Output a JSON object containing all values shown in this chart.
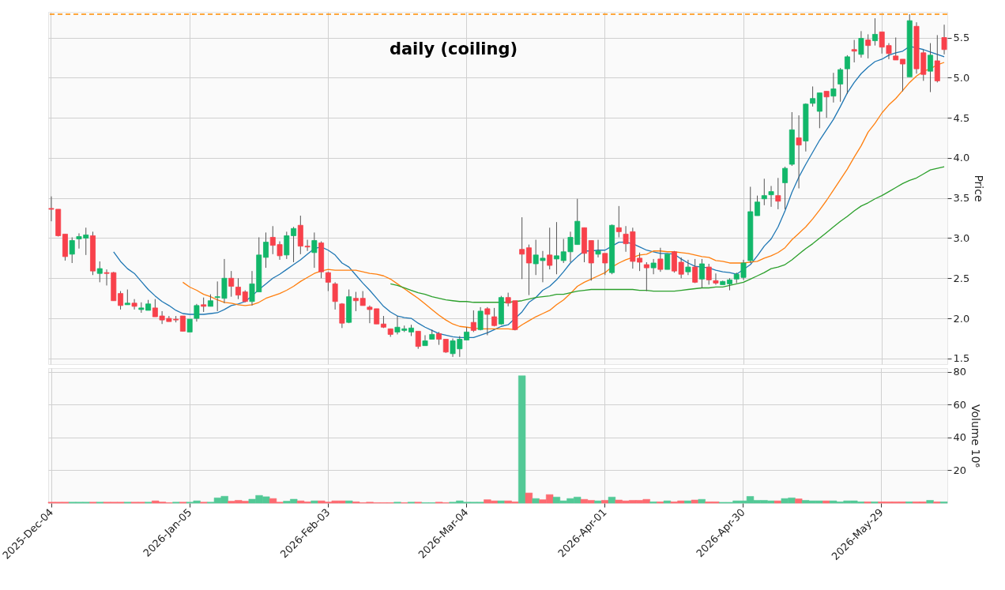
{
  "chart_data": [
    {
      "type": "candlestick",
      "title": "daily  (coiling)",
      "ylabel": "Price",
      "categories": [
        null,
        null,
        null,
        null,
        null,
        null,
        null,
        null,
        null,
        null,
        null,
        null,
        null,
        null,
        null,
        null,
        null,
        null,
        null,
        null,
        null,
        null,
        null,
        null,
        null,
        null,
        null,
        null,
        null,
        null,
        null,
        null,
        null,
        null,
        null,
        null,
        null,
        null,
        null,
        null,
        null,
        null,
        null,
        null,
        null,
        null,
        null,
        null,
        null,
        null,
        null,
        null,
        null,
        null,
        null,
        null,
        null,
        null,
        null,
        null,
        null,
        null,
        null,
        null,
        null,
        null,
        null,
        null,
        null,
        null,
        null,
        null,
        null,
        null,
        null,
        null,
        null,
        null,
        null,
        null,
        null,
        null,
        null,
        null,
        null,
        null,
        null,
        null,
        null,
        null,
        null,
        null,
        null,
        null,
        null,
        null,
        null,
        null,
        null,
        null,
        null,
        null,
        null,
        null,
        null,
        null,
        null,
        null,
        null,
        null,
        null,
        null,
        null,
        null,
        null,
        null,
        null,
        null,
        null,
        null,
        null,
        null,
        null,
        null,
        null,
        null,
        null,
        null,
        null,
        null
      ],
      "ohlc": [
        [
          3.37,
          3.52,
          3.21,
          3.36
        ],
        [
          3.36,
          3.36,
          3.02,
          3.03
        ],
        [
          3.05,
          3.05,
          2.72,
          2.77
        ],
        [
          2.8,
          3.01,
          2.69,
          2.97
        ],
        [
          2.99,
          3.06,
          2.87,
          3.02
        ],
        [
          3.0,
          3.13,
          2.79,
          3.04
        ],
        [
          3.03,
          3.08,
          2.54,
          2.59
        ],
        [
          2.56,
          2.71,
          2.45,
          2.62
        ],
        [
          2.57,
          2.61,
          2.41,
          2.56
        ],
        [
          2.57,
          2.58,
          2.22,
          2.22
        ],
        [
          2.31,
          2.34,
          2.11,
          2.16
        ],
        [
          2.17,
          2.36,
          2.17,
          2.19
        ],
        [
          2.19,
          2.24,
          2.11,
          2.15
        ],
        [
          2.11,
          2.2,
          2.07,
          2.13
        ],
        [
          2.1,
          2.23,
          2.1,
          2.18
        ],
        [
          2.13,
          2.24,
          2.02,
          2.02
        ],
        [
          2.03,
          2.09,
          1.93,
          1.98
        ],
        [
          2.0,
          2.03,
          1.96,
          1.96
        ],
        [
          1.99,
          2.03,
          1.95,
          1.98
        ],
        [
          2.03,
          2.03,
          1.84,
          1.84
        ],
        [
          1.83,
          1.99,
          1.83,
          1.99
        ],
        [
          2.0,
          2.18,
          1.96,
          2.16
        ],
        [
          2.17,
          2.26,
          2.08,
          2.15
        ],
        [
          2.15,
          2.3,
          2.15,
          2.22
        ],
        [
          2.26,
          2.46,
          2.09,
          2.27
        ],
        [
          2.25,
          2.74,
          2.19,
          2.5
        ],
        [
          2.5,
          2.59,
          2.27,
          2.4
        ],
        [
          2.39,
          2.5,
          2.24,
          2.29
        ],
        [
          2.33,
          2.35,
          2.2,
          2.21
        ],
        [
          2.21,
          2.59,
          2.16,
          2.43
        ],
        [
          2.33,
          3.01,
          2.33,
          2.79
        ],
        [
          2.76,
          3.07,
          2.63,
          2.95
        ],
        [
          3.01,
          3.15,
          2.8,
          2.91
        ],
        [
          2.92,
          2.96,
          2.73,
          2.78
        ],
        [
          2.79,
          3.08,
          2.74,
          3.03
        ],
        [
          3.03,
          3.14,
          2.7,
          3.12
        ],
        [
          3.16,
          3.28,
          2.8,
          2.9
        ],
        [
          2.9,
          2.98,
          2.84,
          2.89
        ],
        [
          2.82,
          3.07,
          2.63,
          2.97
        ],
        [
          2.94,
          2.96,
          2.5,
          2.58
        ],
        [
          2.57,
          2.58,
          2.34,
          2.45
        ],
        [
          2.43,
          2.45,
          2.11,
          2.21
        ],
        [
          2.18,
          2.19,
          1.88,
          1.94
        ],
        [
          1.95,
          2.36,
          1.94,
          2.27
        ],
        [
          2.25,
          2.33,
          2.09,
          2.22
        ],
        [
          2.25,
          2.34,
          2.16,
          2.16
        ],
        [
          2.14,
          2.16,
          1.94,
          2.11
        ],
        [
          2.12,
          2.12,
          1.93,
          1.93
        ],
        [
          1.93,
          2.03,
          1.88,
          1.89
        ],
        [
          1.87,
          1.87,
          1.77,
          1.8
        ],
        [
          1.83,
          2.03,
          1.8,
          1.89
        ],
        [
          1.85,
          1.91,
          1.83,
          1.87
        ],
        [
          1.83,
          1.92,
          1.78,
          1.88
        ],
        [
          1.84,
          1.84,
          1.62,
          1.65
        ],
        [
          1.66,
          1.79,
          1.66,
          1.72
        ],
        [
          1.74,
          1.86,
          1.74,
          1.8
        ],
        [
          1.81,
          1.83,
          1.67,
          1.74
        ],
        [
          1.74,
          1.74,
          1.57,
          1.58
        ],
        [
          1.56,
          1.75,
          1.52,
          1.72
        ],
        [
          1.62,
          1.78,
          1.52,
          1.74
        ],
        [
          1.73,
          1.89,
          1.73,
          1.83
        ],
        [
          1.95,
          2.1,
          1.83,
          1.85
        ],
        [
          1.86,
          2.14,
          1.85,
          2.09
        ],
        [
          2.12,
          2.14,
          1.79,
          2.05
        ],
        [
          2.02,
          2.13,
          1.9,
          1.91
        ],
        [
          1.93,
          2.28,
          1.92,
          2.26
        ],
        [
          2.26,
          2.32,
          2.15,
          2.19
        ],
        [
          2.22,
          2.22,
          1.85,
          1.86
        ],
        [
          2.86,
          3.26,
          2.49,
          2.8
        ],
        [
          2.88,
          2.92,
          2.29,
          2.69
        ],
        [
          2.68,
          2.98,
          2.54,
          2.79
        ],
        [
          2.72,
          2.84,
          2.45,
          2.75
        ],
        [
          2.79,
          3.13,
          2.61,
          2.66
        ],
        [
          2.74,
          3.2,
          2.55,
          2.78
        ],
        [
          2.72,
          2.99,
          2.69,
          2.83
        ],
        [
          2.83,
          3.08,
          2.7,
          3.01
        ],
        [
          2.92,
          3.49,
          2.92,
          3.21
        ],
        [
          3.13,
          3.13,
          2.7,
          2.81
        ],
        [
          2.97,
          2.97,
          2.47,
          2.69
        ],
        [
          2.8,
          2.98,
          2.76,
          2.84
        ],
        [
          2.81,
          2.81,
          2.54,
          2.69
        ],
        [
          2.57,
          3.17,
          2.55,
          3.16
        ],
        [
          3.13,
          3.4,
          3.01,
          3.08
        ],
        [
          3.05,
          3.15,
          2.83,
          2.93
        ],
        [
          3.08,
          3.13,
          2.62,
          2.71
        ],
        [
          2.75,
          2.82,
          2.59,
          2.7
        ],
        [
          2.67,
          2.7,
          2.34,
          2.63
        ],
        [
          2.63,
          2.74,
          2.55,
          2.69
        ],
        [
          2.74,
          2.88,
          2.58,
          2.61
        ],
        [
          2.61,
          2.8,
          2.61,
          2.8
        ],
        [
          2.83,
          2.84,
          2.57,
          2.59
        ],
        [
          2.7,
          2.76,
          2.5,
          2.55
        ],
        [
          2.58,
          2.73,
          2.54,
          2.64
        ],
        [
          2.64,
          2.74,
          2.44,
          2.45
        ],
        [
          2.49,
          2.74,
          2.38,
          2.68
        ],
        [
          2.64,
          2.68,
          2.42,
          2.48
        ],
        [
          2.47,
          2.56,
          2.42,
          2.44
        ],
        [
          2.42,
          2.47,
          2.42,
          2.46
        ],
        [
          2.43,
          2.5,
          2.35,
          2.48
        ],
        [
          2.49,
          2.57,
          2.44,
          2.55
        ],
        [
          2.51,
          2.73,
          2.48,
          2.69
        ],
        [
          2.72,
          3.64,
          2.69,
          3.33
        ],
        [
          3.28,
          3.53,
          3.28,
          3.45
        ],
        [
          3.49,
          3.74,
          3.41,
          3.53
        ],
        [
          3.54,
          3.65,
          3.39,
          3.58
        ],
        [
          3.53,
          3.75,
          3.36,
          3.46
        ],
        [
          3.69,
          3.89,
          3.36,
          3.87
        ],
        [
          3.92,
          4.57,
          3.9,
          4.35
        ],
        [
          4.25,
          4.53,
          3.62,
          4.16
        ],
        [
          4.21,
          4.68,
          4.08,
          4.67
        ],
        [
          4.68,
          4.89,
          4.64,
          4.74
        ],
        [
          4.58,
          4.81,
          4.37,
          4.81
        ],
        [
          4.83,
          4.83,
          4.5,
          4.76
        ],
        [
          4.77,
          5.06,
          4.69,
          4.86
        ],
        [
          4.92,
          5.12,
          4.7,
          5.1
        ],
        [
          5.11,
          5.28,
          4.8,
          5.26
        ],
        [
          5.35,
          5.47,
          5.19,
          5.33
        ],
        [
          5.29,
          5.58,
          5.25,
          5.49
        ],
        [
          5.47,
          5.54,
          5.24,
          5.4
        ],
        [
          5.46,
          5.74,
          5.4,
          5.54
        ],
        [
          5.57,
          5.57,
          5.3,
          5.38
        ],
        [
          5.4,
          5.43,
          5.23,
          5.3
        ],
        [
          5.27,
          5.5,
          5.22,
          5.22
        ],
        [
          5.23,
          5.23,
          4.83,
          5.17
        ],
        [
          5.01,
          5.79,
          5.01,
          5.71
        ],
        [
          5.64,
          5.69,
          5.05,
          5.11
        ],
        [
          5.31,
          5.35,
          4.96,
          5.04
        ],
        [
          5.08,
          5.43,
          4.82,
          5.28
        ],
        [
          5.21,
          5.53,
          4.94,
          4.96
        ],
        [
          5.5,
          5.66,
          5.29,
          5.35
        ]
      ],
      "colors": [
        "#f8414b",
        "#f8414b",
        "#f8414b",
        "#12b76a",
        "#12b76a",
        "#12b76a",
        "#f8414b",
        "#12b76a",
        "#f8414b",
        "#f8414b",
        "#f8414b",
        "#12b76a",
        "#f8414b",
        "#12b76a",
        "#12b76a",
        "#f8414b",
        "#f8414b",
        "#f8414b",
        "#f8414b",
        "#f8414b",
        "#12b76a",
        "#12b76a",
        "#f8414b",
        "#12b76a",
        "#12b76a",
        "#12b76a",
        "#f8414b",
        "#f8414b",
        "#f8414b",
        "#12b76a",
        "#12b76a",
        "#12b76a",
        "#f8414b",
        "#f8414b",
        "#12b76a",
        "#12b76a",
        "#f8414b",
        "#f8414b",
        "#12b76a",
        "#f8414b",
        "#f8414b",
        "#f8414b",
        "#f8414b",
        "#12b76a",
        "#f8414b",
        "#f8414b",
        "#f8414b",
        "#f8414b",
        "#f8414b",
        "#f8414b",
        "#12b76a",
        "#12b76a",
        "#12b76a",
        "#f8414b",
        "#12b76a",
        "#12b76a",
        "#f8414b",
        "#f8414b",
        "#12b76a",
        "#12b76a",
        "#12b76a",
        "#f8414b",
        "#12b76a",
        "#f8414b",
        "#f8414b",
        "#12b76a",
        "#f8414b",
        "#f8414b",
        "#f8414b",
        "#f8414b",
        "#12b76a",
        "#12b76a",
        "#f8414b",
        "#12b76a",
        "#12b76a",
        "#12b76a",
        "#12b76a",
        "#f8414b",
        "#f8414b",
        "#12b76a",
        "#f8414b",
        "#12b76a",
        "#f8414b",
        "#f8414b",
        "#f8414b",
        "#f8414b",
        "#f8414b",
        "#12b76a",
        "#f8414b",
        "#12b76a",
        "#f8414b",
        "#f8414b",
        "#12b76a",
        "#f8414b",
        "#12b76a",
        "#f8414b",
        "#f8414b",
        "#12b76a",
        "#12b76a",
        "#12b76a",
        "#12b76a",
        "#12b76a",
        "#12b76a",
        "#12b76a",
        "#12b76a",
        "#f8414b",
        "#12b76a",
        "#12b76a",
        "#f8414b",
        "#12b76a",
        "#12b76a",
        "#12b76a",
        "#f8414b",
        "#12b76a",
        "#12b76a",
        "#12b76a",
        "#f8414b",
        "#12b76a",
        "#f8414b",
        "#12b76a",
        "#f8414b",
        "#f8414b",
        "#f8414b",
        "#f8414b",
        "#12b76a",
        "#f8414b",
        "#f8414b",
        "#12b76a",
        "#f8414b",
        "#f8414b"
      ],
      "series": [
        {
          "type": "line",
          "color": "#1f77b4",
          "values": [
            null,
            null,
            null,
            null,
            null,
            null,
            null,
            null,
            null,
            2.83,
            2.71,
            2.62,
            2.56,
            2.46,
            2.36,
            2.28,
            2.21,
            2.16,
            2.1,
            2.06,
            2.05,
            2.05,
            2.05,
            2.06,
            2.07,
            2.11,
            2.16,
            2.18,
            2.21,
            2.28,
            2.36,
            2.43,
            2.5,
            2.55,
            2.61,
            2.67,
            2.73,
            2.8,
            2.87,
            2.89,
            2.85,
            2.79,
            2.69,
            2.64,
            2.54,
            2.44,
            2.35,
            2.25,
            2.15,
            2.08,
            2.03,
            2.01,
            2.0,
            1.94,
            1.89,
            1.85,
            1.81,
            1.79,
            1.77,
            1.76,
            1.76,
            1.76,
            1.79,
            1.82,
            1.86,
            1.9,
            1.92,
            null,
            2.08,
            2.2,
            2.26,
            2.35,
            2.4,
            2.48,
            2.58,
            2.69,
            2.77,
            2.84,
            2.84,
            2.85,
            2.85,
            2.9,
            2.95,
            2.95,
            2.93,
            2.89,
            2.85,
            2.83,
            2.81,
            2.81,
            2.8,
            2.74,
            2.69,
            2.65,
            2.64,
            2.63,
            2.6,
            2.58,
            2.57,
            2.55,
            null,
            2.67,
            2.78,
            2.9,
            2.99,
            3.14,
            3.34,
            3.57,
            3.76,
            3.92,
            4.07,
            4.22,
            4.35,
            4.48,
            4.64,
            4.81,
            4.94,
            5.05,
            5.13,
            5.2,
            5.23,
            5.28,
            5.31,
            5.33,
            5.39,
            5.37,
            5.35,
            5.32,
            5.29,
            5.26
          ]
        },
        {
          "type": "line",
          "color": "#ff7f0e",
          "values": [
            null,
            null,
            null,
            null,
            null,
            null,
            null,
            null,
            null,
            null,
            null,
            null,
            null,
            null,
            null,
            null,
            null,
            null,
            null,
            2.45,
            2.39,
            2.35,
            2.3,
            2.27,
            2.23,
            2.2,
            2.19,
            2.17,
            2.16,
            2.17,
            2.2,
            2.25,
            2.28,
            2.31,
            2.35,
            2.4,
            2.46,
            2.51,
            2.56,
            2.59,
            2.61,
            2.6,
            2.6,
            2.6,
            2.6,
            2.58,
            2.56,
            2.55,
            2.53,
            2.49,
            2.43,
            2.37,
            2.31,
            2.25,
            2.18,
            2.11,
            2.04,
            1.98,
            1.93,
            1.9,
            1.89,
            1.88,
            1.87,
            1.87,
            1.87,
            1.87,
            1.87,
            1.86,
            1.92,
            1.97,
            2.02,
            2.06,
            2.1,
            2.17,
            2.23,
            2.31,
            2.4,
            2.45,
            2.49,
            2.53,
            2.57,
            2.64,
            2.69,
            2.73,
            2.76,
            2.79,
            2.8,
            2.84,
            2.84,
            2.83,
            2.83,
            2.82,
            2.81,
            2.79,
            2.77,
            2.76,
            2.72,
            2.71,
            2.69,
            2.69,
            2.69,
            2.7,
            2.71,
            2.75,
            2.78,
            2.82,
            2.88,
            2.98,
            3.06,
            3.14,
            3.24,
            3.35,
            3.47,
            3.6,
            3.73,
            3.86,
            4.01,
            4.15,
            4.32,
            4.43,
            4.56,
            4.66,
            4.74,
            4.84,
            4.94,
            5.02,
            5.08,
            5.11,
            5.16,
            5.19
          ]
        },
        {
          "type": "line",
          "color": "#2ca02c",
          "values": [
            null,
            null,
            null,
            null,
            null,
            null,
            null,
            null,
            null,
            null,
            null,
            null,
            null,
            null,
            null,
            null,
            null,
            null,
            null,
            null,
            null,
            null,
            null,
            null,
            null,
            null,
            null,
            null,
            null,
            null,
            null,
            null,
            null,
            null,
            null,
            null,
            null,
            null,
            null,
            null,
            null,
            null,
            null,
            null,
            null,
            null,
            null,
            null,
            null,
            2.43,
            2.41,
            2.38,
            2.35,
            2.32,
            2.3,
            2.27,
            2.25,
            2.23,
            2.22,
            2.21,
            2.21,
            2.2,
            2.2,
            2.2,
            2.2,
            2.2,
            2.2,
            2.21,
            2.22,
            2.24,
            2.26,
            2.27,
            2.28,
            2.3,
            2.3,
            2.32,
            2.34,
            2.35,
            2.36,
            2.36,
            2.36,
            2.36,
            2.36,
            2.36,
            2.36,
            2.35,
            2.35,
            2.34,
            2.34,
            2.34,
            2.34,
            2.35,
            2.36,
            2.37,
            2.38,
            2.38,
            2.39,
            2.39,
            2.41,
            2.43,
            2.45,
            2.49,
            2.53,
            2.57,
            2.62,
            2.64,
            2.67,
            2.73,
            2.8,
            2.87,
            2.93,
            3.0,
            3.07,
            3.14,
            3.21,
            3.27,
            3.34,
            3.4,
            3.44,
            3.49,
            3.53,
            3.58,
            3.63,
            3.68,
            3.72,
            3.75,
            3.8,
            3.85,
            3.87,
            3.89
          ]
        }
      ],
      "ylim": [
        1.43,
        5.82
      ],
      "yticks": [
        1.5,
        {
          "value": 2,
          "label": "2.0"
        },
        2.5,
        {
          "value": 3,
          "label": "3.0"
        },
        3.5,
        {
          "value": 4,
          "label": "4.0"
        },
        4.5,
        {
          "value": 5,
          "label": "5.0"
        },
        5.5
      ],
      "ref_lines": [
        {
          "axis": "y",
          "value": 5.79,
          "color": "#ff8c00",
          "line_style": "dashed"
        }
      ],
      "grid": true,
      "tick_labels": "y"
    },
    {
      "type": "bar",
      "ylabel": "Volume  10⁶",
      "categories": [
        "2025-Dec-04",
        null,
        null,
        null,
        null,
        null,
        null,
        null,
        null,
        null,
        null,
        null,
        null,
        null,
        null,
        null,
        null,
        null,
        null,
        null,
        "2026-Jan-05",
        null,
        null,
        null,
        null,
        null,
        null,
        null,
        null,
        null,
        null,
        null,
        null,
        null,
        null,
        null,
        null,
        null,
        null,
        null,
        "2026-Feb-03",
        null,
        null,
        null,
        null,
        null,
        null,
        null,
        null,
        null,
        null,
        null,
        null,
        null,
        null,
        null,
        null,
        null,
        null,
        null,
        "2026-Mar-04",
        null,
        null,
        null,
        null,
        null,
        null,
        null,
        null,
        null,
        null,
        null,
        null,
        null,
        null,
        null,
        null,
        null,
        null,
        null,
        "2026-Apr-01",
        null,
        null,
        null,
        null,
        null,
        null,
        null,
        null,
        null,
        null,
        null,
        null,
        null,
        null,
        null,
        null,
        null,
        null,
        null,
        "2026-Apr-30",
        null,
        null,
        null,
        null,
        null,
        null,
        null,
        null,
        null,
        null,
        null,
        null,
        null,
        null,
        null,
        null,
        null,
        null,
        null,
        "2026-May-29",
        null,
        null,
        null,
        null,
        null,
        null,
        null,
        null,
        null
      ],
      "values": [
        0.6,
        0.6,
        0.6,
        0.6,
        0.6,
        0.6,
        0.6,
        0.6,
        0.6,
        0.6,
        0.6,
        0.6,
        0.6,
        0.6,
        0.6,
        1.4,
        0.7,
        0.3,
        0.6,
        0.6,
        0.6,
        1.4,
        0.6,
        0.6,
        3.2,
        4.2,
        1.2,
        1.7,
        1.2,
        2.4,
        4.7,
        3.9,
        2.8,
        0.6,
        1.2,
        2.4,
        1.4,
        0.8,
        1.4,
        1.4,
        0.7,
        1.4,
        1.4,
        1.4,
        0.8,
        0.3,
        0.6,
        0.3,
        0.3,
        0.3,
        0.6,
        0.3,
        0.6,
        0.6,
        0.3,
        0.3,
        0.6,
        0.3,
        0.6,
        1.4,
        0.6,
        0.6,
        0.6,
        2.1,
        1.4,
        1.4,
        1.4,
        0.8,
        77.7,
        6.2,
        2.8,
        2.1,
        5.2,
        3.7,
        1.4,
        2.8,
        3.7,
        2.3,
        1.7,
        1.4,
        1.7,
        3.7,
        1.9,
        1.4,
        1.7,
        1.7,
        2.3,
        0.8,
        0.8,
        1.4,
        0.8,
        1.4,
        1.4,
        1.9,
        2.3,
        0.8,
        0.8,
        0.5,
        0.5,
        1.4,
        1.4,
        4.1,
        1.7,
        1.7,
        1.4,
        1.4,
        2.8,
        3.2,
        2.6,
        1.7,
        1.4,
        1.4,
        1.4,
        1.4,
        0.8,
        1.4,
        1.4,
        0.8,
        0.8,
        0.8,
        0.8,
        0.8,
        0.8,
        0.8,
        0.8,
        0.8,
        0.8,
        1.7,
        0.8,
        0.8
      ],
      "colors": [
        "#fd6a70",
        "#fd6a70",
        "#fd6a70",
        "#52c996",
        "#52c996",
        "#52c996",
        "#fd6a70",
        "#52c996",
        "#fd6a70",
        "#fd6a70",
        "#fd6a70",
        "#52c996",
        "#fd6a70",
        "#fd6a70",
        "#52c996",
        "#fd6a70",
        "#fd6a70",
        "#fd6a70",
        "#52c996",
        "#fd6a70",
        "#52c996",
        "#52c996",
        "#fd6a70",
        "#52c996",
        "#52c996",
        "#52c996",
        "#fd6a70",
        "#fd6a70",
        "#fd6a70",
        "#52c996",
        "#52c996",
        "#52c996",
        "#fd6a70",
        "#fd6a70",
        "#52c996",
        "#52c996",
        "#fd6a70",
        "#fd6a70",
        "#52c996",
        "#fd6a70",
        "#fd6a70",
        "#fd6a70",
        "#fd6a70",
        "#52c996",
        "#fd6a70",
        "#fd6a70",
        "#fd6a70",
        "#fd6a70",
        "#fd6a70",
        "#fd6a70",
        "#52c996",
        "#fd6a70",
        "#52c996",
        "#fd6a70",
        "#52c996",
        "#52c996",
        "#fd6a70",
        "#fd6a70",
        "#52c996",
        "#52c996",
        "#52c996",
        "#52c996",
        "#52c996",
        "#fd6a70",
        "#fd6a70",
        "#52c996",
        "#fd6a70",
        "#fd6a70",
        "#52c996",
        "#fd6a70",
        "#52c996",
        "#fd6a70",
        "#fd6a70",
        "#52c996",
        "#52c996",
        "#52c996",
        "#52c996",
        "#fd6a70",
        "#fd6a70",
        "#52c996",
        "#fd6a70",
        "#52c996",
        "#fd6a70",
        "#fd6a70",
        "#fd6a70",
        "#fd6a70",
        "#fd6a70",
        "#52c996",
        "#fd6a70",
        "#52c996",
        "#fd6a70",
        "#fd6a70",
        "#52c996",
        "#fd6a70",
        "#52c996",
        "#fd6a70",
        "#fd6a70",
        "#52c996",
        "#52c996",
        "#52c996",
        "#52c996",
        "#52c996",
        "#52c996",
        "#52c996",
        "#52c996",
        "#fd6a70",
        "#52c996",
        "#52c996",
        "#fd6a70",
        "#52c996",
        "#52c996",
        "#52c996",
        "#fd6a70",
        "#52c996",
        "#52c996",
        "#52c996",
        "#52c996",
        "#52c996",
        "#fd6a70",
        "#52c996",
        "#fd6a70",
        "#fd6a70",
        "#fd6a70",
        "#fd6a70",
        "#52c996",
        "#fd6a70",
        "#fd6a70",
        "#52c996",
        "#fd6a70",
        "#52c996"
      ],
      "ylim": [
        0,
        82.4
      ],
      "yticks": [
        20,
        40,
        60,
        80
      ],
      "grid": true
    }
  ]
}
